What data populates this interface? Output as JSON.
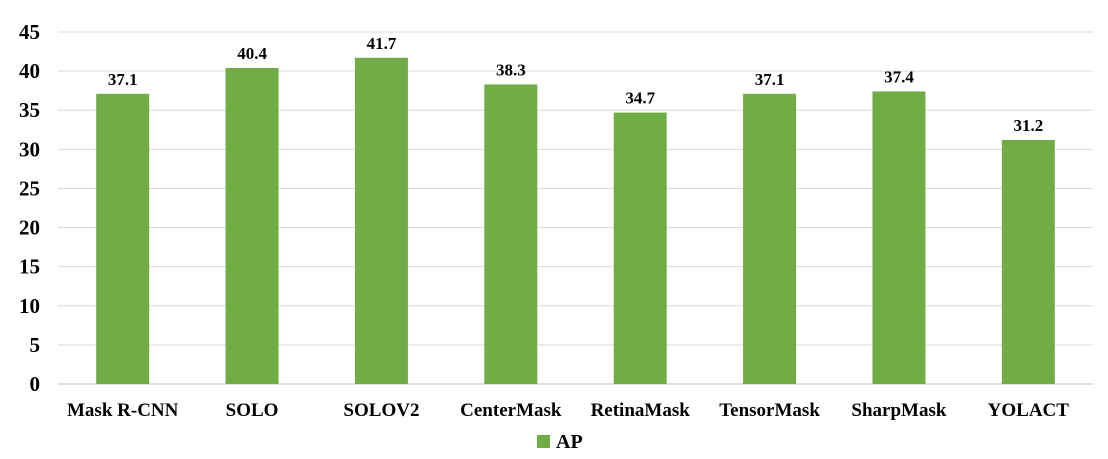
{
  "chart_data": {
    "type": "bar",
    "title": "",
    "xlabel": "",
    "ylabel": "",
    "categories": [
      "Mask R-CNN",
      "SOLO",
      "SOLOV2",
      "CenterMask",
      "RetinaMask",
      "TensorMask",
      "SharpMask",
      "YOLACT"
    ],
    "series": [
      {
        "name": "AP",
        "values": [
          37.1,
          40.4,
          41.7,
          38.3,
          34.7,
          37.1,
          37.4,
          31.2
        ],
        "labels": [
          "37.1",
          "40.4",
          "41.7",
          "38.3",
          "34.7",
          "37.1",
          "37.4",
          "31.2"
        ],
        "color": "#70ad47"
      }
    ],
    "ylim": [
      0,
      45
    ],
    "yticks": [
      "0",
      "5",
      "10",
      "15",
      "20",
      "25",
      "30",
      "35",
      "40",
      "45"
    ],
    "grid": true,
    "legend": "bottom"
  }
}
